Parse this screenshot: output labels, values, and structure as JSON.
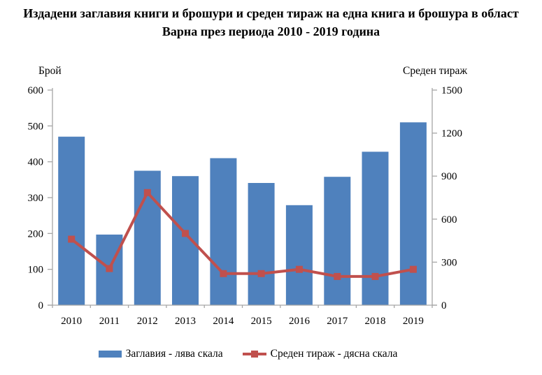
{
  "title": {
    "line1": "Издадени заглавия книги и брошури и среден тираж на една книга и брошура в област",
    "line2": "Варна през периода 2010 - 2019 година"
  },
  "chart_data": {
    "type": "bar",
    "subtype": "combo bar+line, dual axis",
    "categories": [
      "2010",
      "2011",
      "2012",
      "2013",
      "2014",
      "2015",
      "2016",
      "2017",
      "2018",
      "2019"
    ],
    "series": [
      {
        "name": "Заглавия - лява скала",
        "type": "bar",
        "axis": "left",
        "color": "#4F81BD",
        "values": [
          470,
          197,
          375,
          360,
          410,
          341,
          279,
          358,
          428,
          510
        ]
      },
      {
        "name": "Среден тираж - дясна скала",
        "type": "line",
        "axis": "right",
        "color": "#C0504D",
        "values": [
          460,
          255,
          785,
          500,
          220,
          220,
          250,
          200,
          200,
          250
        ]
      }
    ],
    "left_axis": {
      "title": "Брой",
      "min": 0,
      "max": 600,
      "ticks": [
        0,
        100,
        200,
        300,
        400,
        500,
        600
      ]
    },
    "right_axis": {
      "title": "Среден тираж",
      "min": 0,
      "max": 1500,
      "ticks": [
        0,
        300,
        600,
        900,
        1200,
        1500
      ]
    },
    "grid": false,
    "legend_position": "bottom",
    "axis_color": "#A6A6A6"
  }
}
